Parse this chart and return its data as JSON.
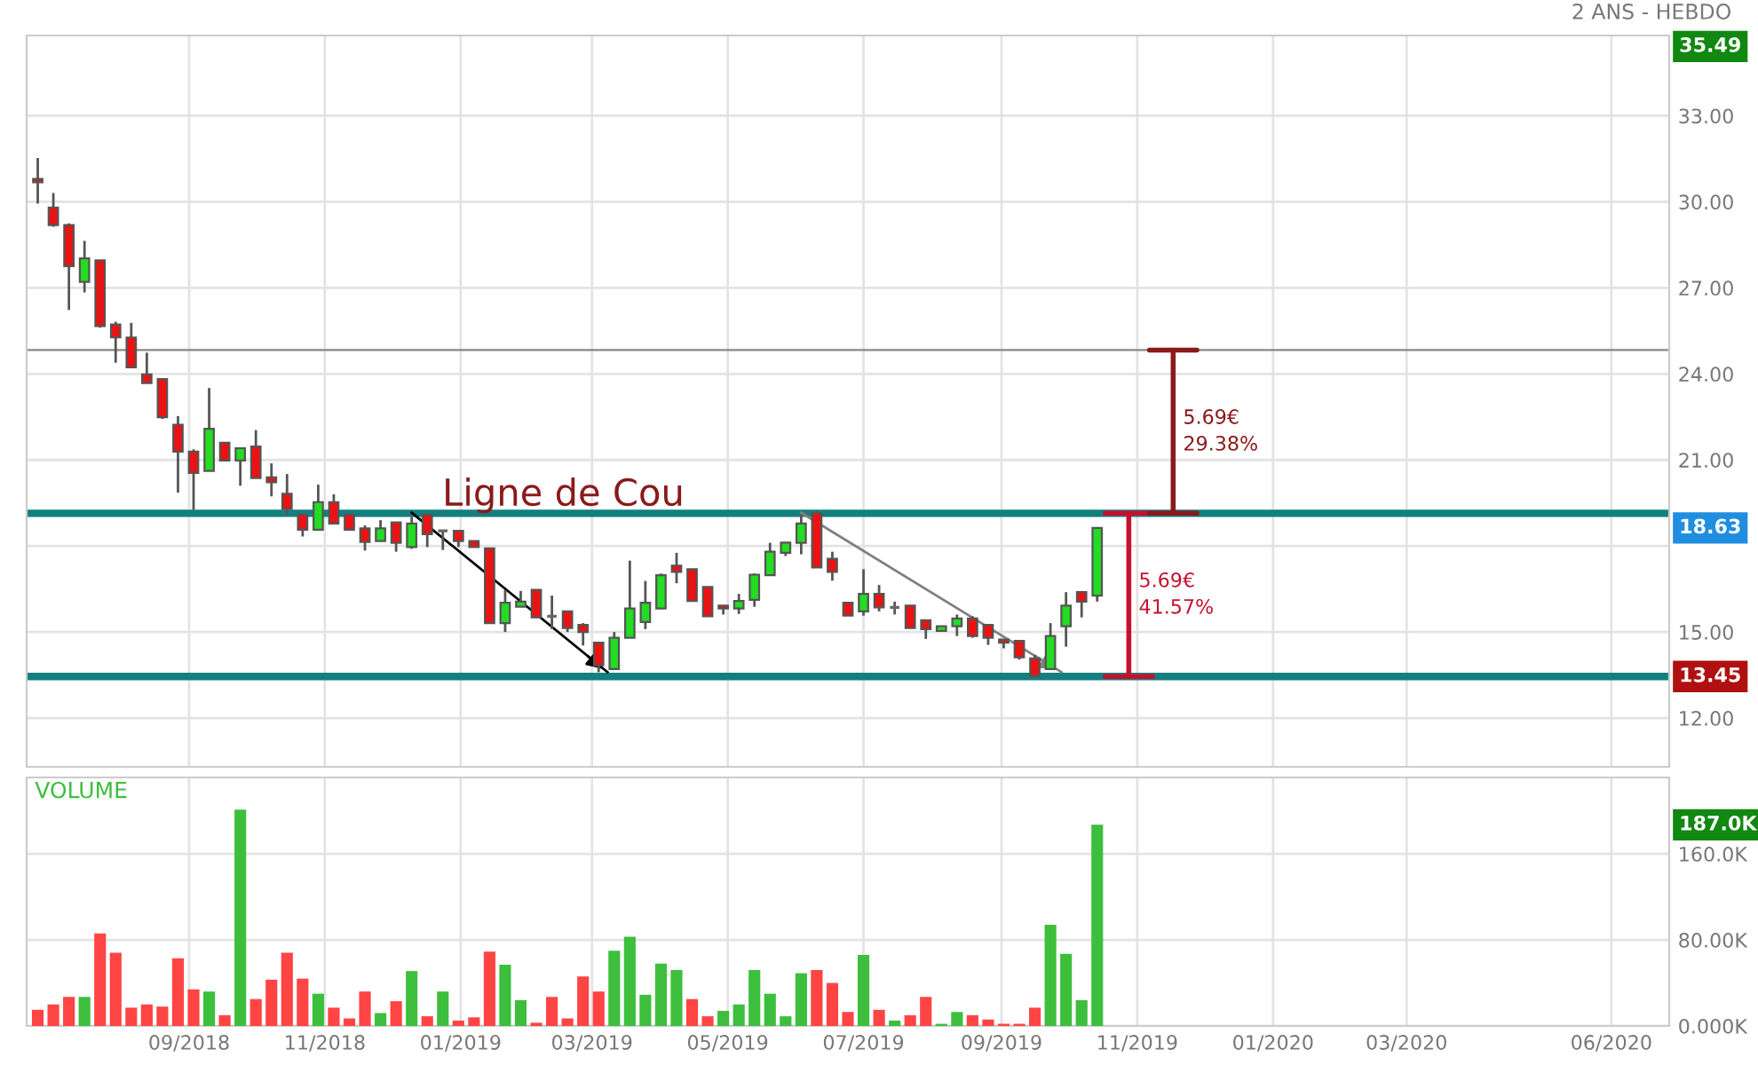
{
  "chart_data": [
    {
      "type": "candlestick",
      "subtitle": "2 ANS - HEBDO",
      "x": [
        "2018-06-25",
        "2018-07-02",
        "2018-07-09",
        "2018-07-16",
        "2018-07-23",
        "2018-07-30",
        "2018-08-06",
        "2018-08-13",
        "2018-08-20",
        "2018-08-27",
        "2018-09-03",
        "2018-09-10",
        "2018-09-17",
        "2018-09-24",
        "2018-10-01",
        "2018-10-08",
        "2018-10-15",
        "2018-10-22",
        "2018-10-29",
        "2018-11-05",
        "2018-11-12",
        "2018-11-19",
        "2018-11-26",
        "2018-12-03",
        "2018-12-10",
        "2018-12-17",
        "2018-12-24",
        "2018-12-31",
        "2019-01-07",
        "2019-01-14",
        "2019-01-21",
        "2019-01-28",
        "2019-02-04",
        "2019-02-11",
        "2019-02-18",
        "2019-02-25",
        "2019-03-04",
        "2019-03-11",
        "2019-03-18",
        "2019-03-25",
        "2019-04-01",
        "2019-04-08",
        "2019-04-15",
        "2019-04-22",
        "2019-04-29",
        "2019-05-06",
        "2019-05-13",
        "2019-05-20",
        "2019-05-27",
        "2019-06-03",
        "2019-06-10",
        "2019-06-17",
        "2019-06-24",
        "2019-07-01",
        "2019-07-08",
        "2019-07-15",
        "2019-07-22",
        "2019-07-29",
        "2019-08-05",
        "2019-08-12",
        "2019-08-19",
        "2019-08-26",
        "2019-09-02",
        "2019-09-09",
        "2019-09-16",
        "2019-09-23",
        "2019-09-30",
        "2019-10-07",
        "2019-10-14"
      ],
      "ohlc": [
        [
          30.8,
          31.53,
          29.94,
          30.68
        ],
        [
          29.8,
          30.31,
          29.13,
          29.19
        ],
        [
          29.19,
          29.25,
          26.23,
          27.76
        ],
        [
          27.21,
          28.64,
          26.84,
          28.03
        ],
        [
          27.96,
          27.96,
          25.61,
          25.67
        ],
        [
          25.72,
          25.82,
          24.39,
          25.27
        ],
        [
          25.27,
          25.78,
          24.23,
          24.23
        ],
        [
          23.98,
          24.74,
          23.68,
          23.68
        ],
        [
          23.82,
          23.82,
          22.43,
          22.49
        ],
        [
          22.23,
          22.53,
          19.86,
          21.29
        ],
        [
          21.29,
          21.37,
          19.26,
          20.55
        ],
        [
          20.62,
          23.51,
          20.62,
          22.09
        ],
        [
          21.6,
          21.6,
          20.98,
          20.98
        ],
        [
          20.98,
          21.41,
          20.1,
          21.41
        ],
        [
          21.47,
          22.04,
          20.37,
          20.37
        ],
        [
          20.39,
          20.88,
          19.73,
          20.22
        ],
        [
          19.82,
          20.51,
          19.09,
          19.29
        ],
        [
          19.09,
          19.09,
          18.33,
          18.57
        ],
        [
          18.57,
          20.14,
          18.57,
          19.53
        ],
        [
          19.53,
          19.8,
          18.78,
          18.78
        ],
        [
          19.09,
          19.09,
          18.57,
          18.57
        ],
        [
          18.61,
          18.72,
          17.84,
          18.14
        ],
        [
          18.17,
          18.9,
          18.17,
          18.61
        ],
        [
          18.82,
          18.82,
          17.8,
          18.11
        ],
        [
          17.96,
          19.02,
          17.9,
          18.78
        ],
        [
          19.09,
          19.09,
          17.96,
          18.41
        ],
        [
          18.53,
          18.53,
          17.86,
          18.53
        ],
        [
          18.53,
          18.53,
          17.96,
          18.17
        ],
        [
          18.17,
          18.17,
          17.96,
          17.96
        ],
        [
          17.92,
          17.92,
          15.31,
          15.31
        ],
        [
          15.31,
          16.47,
          15.0,
          16.02
        ],
        [
          15.88,
          16.43,
          15.88,
          16.06
        ],
        [
          16.47,
          16.47,
          15.51,
          15.51
        ],
        [
          15.55,
          16.27,
          15.1,
          15.55
        ],
        [
          15.72,
          15.72,
          15.0,
          15.14
        ],
        [
          15.25,
          15.31,
          14.53,
          15.0
        ],
        [
          14.63,
          14.63,
          13.6,
          13.84
        ],
        [
          13.71,
          15.0,
          13.71,
          14.8
        ],
        [
          14.8,
          17.49,
          14.8,
          15.82
        ],
        [
          15.35,
          16.78,
          15.1,
          16.02
        ],
        [
          15.82,
          17.04,
          15.82,
          16.98
        ],
        [
          17.31,
          17.76,
          16.7,
          17.1
        ],
        [
          17.19,
          17.19,
          16.08,
          16.08
        ],
        [
          16.57,
          16.57,
          15.55,
          15.55
        ],
        [
          15.92,
          15.92,
          15.61,
          15.82
        ],
        [
          15.82,
          16.33,
          15.63,
          16.08
        ],
        [
          16.12,
          17.04,
          15.88,
          17.0
        ],
        [
          16.98,
          18.11,
          16.98,
          17.8
        ],
        [
          17.76,
          18.12,
          17.65,
          18.12
        ],
        [
          18.11,
          19.09,
          17.71,
          18.78
        ],
        [
          19.15,
          19.23,
          17.25,
          17.25
        ],
        [
          17.55,
          17.8,
          16.79,
          17.1
        ],
        [
          16.02,
          16.02,
          15.57,
          15.57
        ],
        [
          15.72,
          17.19,
          15.57,
          16.33
        ],
        [
          16.33,
          16.64,
          15.72,
          15.86
        ],
        [
          15.86,
          16.06,
          15.61,
          15.86
        ],
        [
          15.92,
          15.92,
          15.14,
          15.14
        ],
        [
          15.41,
          15.41,
          14.76,
          15.1
        ],
        [
          15.04,
          15.2,
          15.04,
          15.2
        ],
        [
          15.2,
          15.61,
          14.86,
          15.47
        ],
        [
          15.47,
          15.55,
          14.8,
          14.86
        ],
        [
          15.25,
          15.25,
          14.55,
          14.8
        ],
        [
          14.74,
          14.74,
          14.43,
          14.63
        ],
        [
          14.69,
          14.69,
          14.04,
          14.12
        ],
        [
          14.08,
          14.19,
          13.45,
          13.47
        ],
        [
          13.71,
          15.31,
          13.71,
          14.86
        ],
        [
          15.2,
          16.39,
          14.49,
          15.92
        ],
        [
          16.39,
          16.43,
          15.51,
          16.06
        ],
        [
          16.27,
          18.66,
          16.06,
          18.63
        ]
      ],
      "colors": [
        "#ee1111",
        "#ee1111",
        "#ee1111",
        "#22dd22",
        "#ee1111",
        "#ee1111",
        "#ee1111",
        "#ee1111",
        "#ee1111",
        "#ee1111",
        "#ee1111",
        "#22dd22",
        "#ee1111",
        "#22dd22",
        "#ee1111",
        "#ee1111",
        "#ee1111",
        "#ee1111",
        "#22dd22",
        "#ee1111",
        "#ee1111",
        "#ee1111",
        "#22dd22",
        "#ee1111",
        "#22dd22",
        "#ee1111",
        "#666666",
        "#ee1111",
        "#ee1111",
        "#ee1111",
        "#22dd22",
        "#22dd22",
        "#ee1111",
        "#666666",
        "#ee1111",
        "#ee1111",
        "#ee1111",
        "#22dd22",
        "#22dd22",
        "#22dd22",
        "#22dd22",
        "#ee1111",
        "#ee1111",
        "#ee1111",
        "#ee1111",
        "#22dd22",
        "#22dd22",
        "#22dd22",
        "#22dd22",
        "#22dd22",
        "#ee1111",
        "#ee1111",
        "#ee1111",
        "#22dd22",
        "#ee1111",
        "#666666",
        "#ee1111",
        "#ee1111",
        "#22dd22",
        "#22dd22",
        "#ee1111",
        "#ee1111",
        "#ee1111",
        "#ee1111",
        "#ee1111",
        "#22dd22",
        "#22dd22",
        "#ee1111",
        "#22dd22"
      ],
      "series": [
        {
          "type": "line",
          "color": "#000000",
          "x": [
            "2018-12-10",
            "2019-03-08"
          ],
          "values": [
            19.16,
            13.6
          ]
        },
        {
          "type": "line",
          "color": "#808080",
          "x": [
            "2019-06-03",
            "2019-09-28"
          ],
          "values": [
            19.16,
            13.6
          ]
        }
      ],
      "ref_lines": [
        {
          "axis": "y",
          "value": 19.14,
          "label": "Ligne de Cou",
          "color": "#137f7f"
        },
        {
          "axis": "y",
          "value": 13.45,
          "color": "#137f7f"
        },
        {
          "axis": "y",
          "value": 24.83,
          "color": "#888888"
        }
      ],
      "annotations": [
        "35.49",
        "18.63",
        "13.45",
        "5.69€\n41.57%",
        "5.69€\n29.38%"
      ],
      "xlim": [
        "2018-06-20",
        "2020-06-27"
      ],
      "xticks": [
        {
          "value": "2018-09-01",
          "label": null
        },
        {
          "value": "2018-11-01",
          "label": null
        },
        {
          "value": "2019-01-01",
          "label": null
        },
        {
          "value": "2019-03-01",
          "label": null
        },
        {
          "value": "2019-05-01",
          "label": null
        },
        {
          "value": "2019-07-01",
          "label": null
        },
        {
          "value": "2019-09-01",
          "label": null
        },
        {
          "value": "2019-11-01",
          "label": null
        },
        {
          "value": "2020-01-01",
          "label": null
        },
        {
          "value": "2020-03-01",
          "label": null
        },
        {
          "value": "2020-06-01",
          "label": null
        }
      ],
      "ylim": [
        10.3,
        35.8
      ],
      "yticks": [
        {
          "value": 12,
          "label": "12.00"
        },
        {
          "value": 15,
          "label": "15.00"
        },
        {
          "value": 18,
          "label": null
        },
        {
          "value": 21,
          "label": "21.00"
        },
        {
          "value": 24,
          "label": "24.00"
        },
        {
          "value": 27,
          "label": "27.00"
        },
        {
          "value": 30,
          "label": "30.00"
        },
        {
          "value": 33,
          "label": "33.00"
        }
      ],
      "tick_labels": "y",
      "grid": true
    },
    {
      "type": "bar",
      "title": "VOLUME",
      "x": [
        "2018-06-25",
        "2018-07-02",
        "2018-07-09",
        "2018-07-16",
        "2018-07-23",
        "2018-07-30",
        "2018-08-06",
        "2018-08-13",
        "2018-08-20",
        "2018-08-27",
        "2018-09-03",
        "2018-09-10",
        "2018-09-17",
        "2018-09-24",
        "2018-10-01",
        "2018-10-08",
        "2018-10-15",
        "2018-10-22",
        "2018-10-29",
        "2018-11-05",
        "2018-11-12",
        "2018-11-19",
        "2018-11-26",
        "2018-12-03",
        "2018-12-10",
        "2018-12-17",
        "2018-12-24",
        "2018-12-31",
        "2019-01-07",
        "2019-01-14",
        "2019-01-21",
        "2019-01-28",
        "2019-02-04",
        "2019-02-11",
        "2019-02-18",
        "2019-02-25",
        "2019-03-04",
        "2019-03-11",
        "2019-03-18",
        "2019-03-25",
        "2019-04-01",
        "2019-04-08",
        "2019-04-15",
        "2019-04-22",
        "2019-04-29",
        "2019-05-06",
        "2019-05-13",
        "2019-05-20",
        "2019-05-27",
        "2019-06-03",
        "2019-06-10",
        "2019-06-17",
        "2019-06-24",
        "2019-07-01",
        "2019-07-08",
        "2019-07-15",
        "2019-07-22",
        "2019-07-29",
        "2019-08-05",
        "2019-08-12",
        "2019-08-19",
        "2019-08-26",
        "2019-09-02",
        "2019-09-09",
        "2019-09-16",
        "2019-09-23",
        "2019-09-30",
        "2019-10-07",
        "2019-10-14"
      ],
      "values": [
        15,
        20,
        27,
        27,
        86,
        68,
        17,
        20,
        18,
        63,
        34,
        32,
        10,
        201,
        25,
        43,
        68,
        44,
        30,
        17,
        7,
        32,
        12,
        23,
        51,
        9,
        32,
        5,
        8,
        69,
        57,
        24,
        3,
        27,
        7,
        46,
        32,
        70,
        83,
        29,
        58,
        52,
        25,
        9,
        14,
        20,
        52,
        30,
        9,
        49,
        52,
        40,
        13,
        66,
        15,
        5,
        10,
        27,
        2,
        13,
        10,
        6,
        2,
        2,
        17,
        94,
        67,
        24,
        187
      ],
      "colors": [
        "#ff4444",
        "#ff4444",
        "#ff4444",
        "#3dbf3d",
        "#ff4444",
        "#ff4444",
        "#ff4444",
        "#ff4444",
        "#ff4444",
        "#ff4444",
        "#ff4444",
        "#3dbf3d",
        "#ff4444",
        "#3dbf3d",
        "#ff4444",
        "#ff4444",
        "#ff4444",
        "#ff4444",
        "#3dbf3d",
        "#ff4444",
        "#ff4444",
        "#ff4444",
        "#3dbf3d",
        "#ff4444",
        "#3dbf3d",
        "#ff4444",
        "#3dbf3d",
        "#ff4444",
        "#ff4444",
        "#ff4444",
        "#3dbf3d",
        "#3dbf3d",
        "#ff4444",
        "#ff4444",
        "#ff4444",
        "#ff4444",
        "#ff4444",
        "#3dbf3d",
        "#3dbf3d",
        "#3dbf3d",
        "#3dbf3d",
        "#3dbf3d",
        "#ff4444",
        "#ff4444",
        "#3dbf3d",
        "#3dbf3d",
        "#3dbf3d",
        "#3dbf3d",
        "#3dbf3d",
        "#3dbf3d",
        "#ff4444",
        "#ff4444",
        "#ff4444",
        "#3dbf3d",
        "#ff4444",
        "#3dbf3d",
        "#ff4444",
        "#ff4444",
        "#3dbf3d",
        "#3dbf3d",
        "#ff4444",
        "#ff4444",
        "#ff4444",
        "#ff4444",
        "#ff4444",
        "#3dbf3d",
        "#3dbf3d",
        "#3dbf3d",
        "#3dbf3d"
      ],
      "annotations": [
        "187.0K"
      ],
      "xlim": [
        "2018-06-20",
        "2020-06-27"
      ],
      "xticks": [
        {
          "value": "2018-09-01",
          "label": "09/2018"
        },
        {
          "value": "2018-11-01",
          "label": "11/2018"
        },
        {
          "value": "2019-01-01",
          "label": "01/2019"
        },
        {
          "value": "2019-03-01",
          "label": "03/2019"
        },
        {
          "value": "2019-05-01",
          "label": "05/2019"
        },
        {
          "value": "2019-07-01",
          "label": "07/2019"
        },
        {
          "value": "2019-09-01",
          "label": "09/2019"
        },
        {
          "value": "2019-11-01",
          "label": "11/2019"
        },
        {
          "value": "2020-01-01",
          "label": "01/2020"
        },
        {
          "value": "2020-03-01",
          "label": "03/2020"
        },
        {
          "value": "2020-06-01",
          "label": "06/2020"
        }
      ],
      "ylim": [
        0,
        231
      ],
      "yticks": [
        {
          "value": 0,
          "label": "0.000K"
        },
        {
          "value": 80,
          "label": "80.00K"
        },
        {
          "value": 160,
          "label": "160.0K"
        }
      ],
      "grid": true
    }
  ]
}
